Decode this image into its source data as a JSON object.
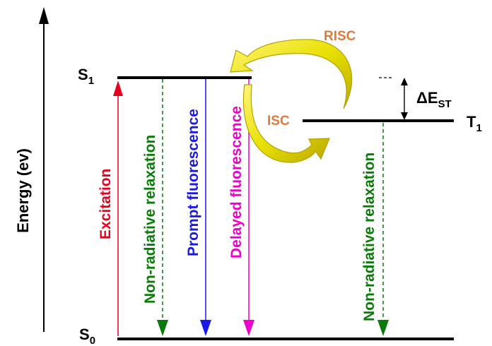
{
  "axis": {
    "label": "Energy (ev)"
  },
  "levels": {
    "s1": {
      "label": "S",
      "sub": "1"
    },
    "s0": {
      "label": "S",
      "sub": "0"
    },
    "t1": {
      "label": "T",
      "sub": "1"
    }
  },
  "gap": {
    "delta": "ΔE",
    "sub": "ST"
  },
  "transitions": {
    "excitation": {
      "label": "Excitation",
      "color": "#e8001c"
    },
    "nonrad_s1": {
      "label": "Non-radiative relaxation",
      "color": "#0a7a0a"
    },
    "prompt": {
      "label": "Prompt fluorescence",
      "color": "#1a1ae6"
    },
    "delayed": {
      "label": "Delayed fluorescence",
      "color": "#ee00cc"
    },
    "nonrad_t1": {
      "label": "Non-radiative relaxation",
      "color": "#0a7a0a"
    }
  },
  "loop": {
    "risc": {
      "label": "RISC"
    },
    "isc": {
      "label": "ISC"
    },
    "label_color": "#e07a3c",
    "arrow_color": "#e6e000"
  },
  "colors": {
    "level": "#000000",
    "axis": "#000000"
  }
}
